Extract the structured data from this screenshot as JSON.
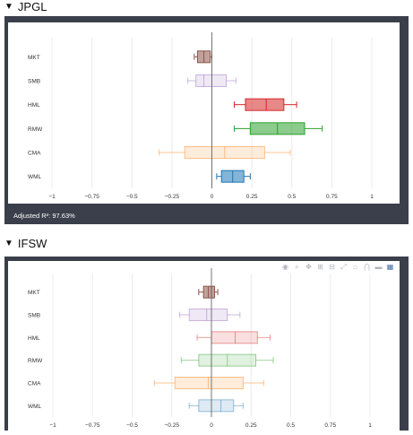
{
  "sections": [
    {
      "title": "JPGL",
      "footer": "Adjusted R²: 97.63%",
      "toolbar_icons": []
    },
    {
      "title": "IFSW",
      "footer": "",
      "toolbar_icons": [
        "camera-icon",
        "zoom-icon",
        "pan-icon",
        "zoom-in-icon",
        "zoom-out-icon",
        "autoscale-icon",
        "home-icon",
        "spike-lines-icon",
        "compare-icon",
        "plotly-logo-icon"
      ]
    }
  ],
  "colors": {
    "MKT": "#8c564b",
    "SMB": "#9467bd",
    "HML": "#d62728",
    "RMW": "#2ca02c",
    "CMA": "#ff7f0e",
    "WML": "#1f77b4"
  },
  "chart_data": [
    {
      "type": "box",
      "orientation": "horizontal",
      "categories": [
        "MKT",
        "SMB",
        "HML",
        "RMW",
        "CMA",
        "WML"
      ],
      "xlim": [
        -1,
        1
      ],
      "xticks": [
        "−1",
        "−0.75",
        "−0.5",
        "−0.25",
        "0",
        "0.25",
        "0.5",
        "0.75",
        "1"
      ],
      "grid": true,
      "legend": "none",
      "boxes": [
        {
          "name": "MKT",
          "min": -0.11,
          "q1": -0.09,
          "median": -0.05,
          "q3": -0.01,
          "max": 0.0,
          "highlighted": true
        },
        {
          "name": "SMB",
          "min": -0.15,
          "q1": -0.1,
          "median": -0.05,
          "q3": 0.09,
          "max": 0.15,
          "highlighted": false
        },
        {
          "name": "HML",
          "min": 0.14,
          "q1": 0.21,
          "median": 0.34,
          "q3": 0.45,
          "max": 0.53,
          "highlighted": true
        },
        {
          "name": "RMW",
          "min": 0.14,
          "q1": 0.24,
          "median": 0.41,
          "q3": 0.58,
          "max": 0.69,
          "highlighted": true
        },
        {
          "name": "CMA",
          "min": -0.33,
          "q1": -0.17,
          "median": 0.08,
          "q3": 0.33,
          "max": 0.49,
          "highlighted": false
        },
        {
          "name": "WML",
          "min": 0.03,
          "q1": 0.06,
          "median": 0.13,
          "q3": 0.2,
          "max": 0.24,
          "highlighted": true
        }
      ]
    },
    {
      "type": "box",
      "orientation": "horizontal",
      "categories": [
        "MKT",
        "SMB",
        "HML",
        "RMW",
        "CMA",
        "WML"
      ],
      "xlim": [
        -1,
        1
      ],
      "xticks": [
        "−1",
        "−0.75",
        "−0.5",
        "−0.25",
        "0",
        "0.25",
        "0.5",
        "0.75",
        "1"
      ],
      "grid": true,
      "legend": "none",
      "boxes": [
        {
          "name": "MKT",
          "min": -0.08,
          "q1": -0.05,
          "median": -0.02,
          "q3": 0.02,
          "max": 0.04,
          "highlighted": true
        },
        {
          "name": "SMB",
          "min": -0.2,
          "q1": -0.14,
          "median": -0.03,
          "q3": 0.1,
          "max": 0.18,
          "highlighted": false
        },
        {
          "name": "HML",
          "min": -0.09,
          "q1": 0.0,
          "median": 0.15,
          "q3": 0.29,
          "max": 0.37,
          "highlighted": false
        },
        {
          "name": "RMW",
          "min": -0.19,
          "q1": -0.08,
          "median": 0.1,
          "q3": 0.28,
          "max": 0.39,
          "highlighted": false
        },
        {
          "name": "CMA",
          "min": -0.36,
          "q1": -0.23,
          "median": -0.02,
          "q3": 0.2,
          "max": 0.33,
          "highlighted": false
        },
        {
          "name": "WML",
          "min": -0.14,
          "q1": -0.08,
          "median": 0.06,
          "q3": 0.14,
          "max": 0.2,
          "highlighted": false
        }
      ]
    }
  ]
}
